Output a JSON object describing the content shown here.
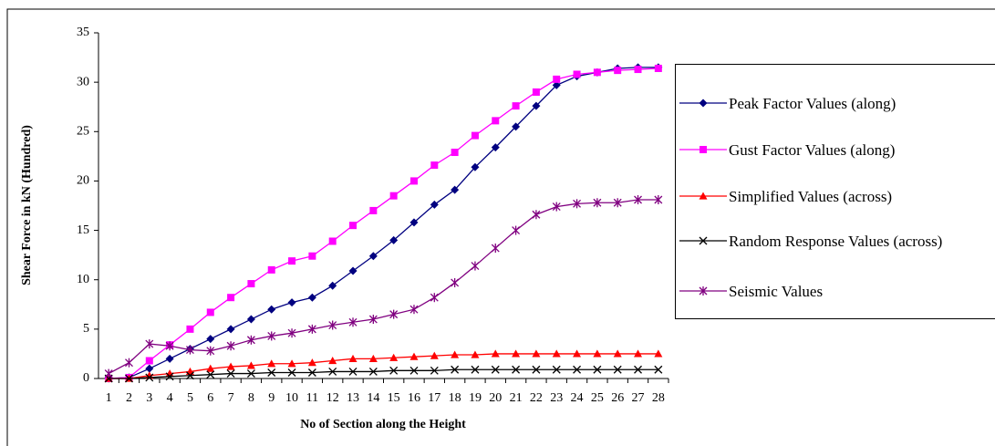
{
  "chart_data": {
    "type": "line",
    "x_label": "No of Section along the Height",
    "y_label": "Shear Force in kN (Hundred)",
    "categories": [
      1,
      2,
      3,
      4,
      5,
      6,
      7,
      8,
      9,
      10,
      11,
      12,
      13,
      14,
      15,
      16,
      17,
      18,
      19,
      20,
      21,
      22,
      23,
      24,
      25,
      26,
      27,
      28
    ],
    "ylim": [
      0,
      35
    ],
    "yticks": [
      0,
      5,
      10,
      15,
      20,
      25,
      30,
      35
    ],
    "grid": false,
    "legend": "right",
    "series": [
      {
        "name": "Peak Factor Values (along)",
        "color": "#000080",
        "marker": "diamond",
        "values": [
          0,
          0.1,
          1,
          2,
          3,
          4,
          5,
          6,
          7,
          7.7,
          8.2,
          9.4,
          10.9,
          12.4,
          14,
          15.8,
          17.6,
          19.1,
          21.4,
          23.4,
          25.5,
          27.6,
          29.7,
          30.6,
          31,
          31.4,
          31.5,
          31.5
        ]
      },
      {
        "name": "Gust Factor Values (along)",
        "color": "#ff00ff",
        "marker": "square",
        "values": [
          0,
          0.1,
          1.8,
          3.4,
          5,
          6.7,
          8.2,
          9.6,
          11,
          11.9,
          12.4,
          13.9,
          15.5,
          17,
          18.5,
          20,
          21.6,
          22.9,
          24.6,
          26.1,
          27.6,
          29,
          30.3,
          30.8,
          31,
          31.2,
          31.3,
          31.4
        ]
      },
      {
        "name": "Simplified Values (across)",
        "color": "#ff0000",
        "marker": "triangle",
        "values": [
          0,
          0,
          0.3,
          0.5,
          0.7,
          1,
          1.2,
          1.3,
          1.5,
          1.5,
          1.6,
          1.8,
          2,
          2,
          2.1,
          2.2,
          2.3,
          2.4,
          2.4,
          2.5,
          2.5,
          2.5,
          2.5,
          2.5,
          2.5,
          2.5,
          2.5,
          2.5
        ]
      },
      {
        "name": "Random Response Values (across)",
        "color": "#000000",
        "marker": "x",
        "values": [
          0,
          0,
          0.1,
          0.2,
          0.3,
          0.4,
          0.5,
          0.5,
          0.6,
          0.6,
          0.6,
          0.7,
          0.7,
          0.7,
          0.8,
          0.8,
          0.8,
          0.9,
          0.9,
          0.9,
          0.9,
          0.9,
          0.9,
          0.9,
          0.9,
          0.9,
          0.9,
          0.9
        ]
      },
      {
        "name": "Seismic Values",
        "color": "#800080",
        "marker": "star",
        "values": [
          0.5,
          1.6,
          3.5,
          3.3,
          2.9,
          2.8,
          3.3,
          3.9,
          4.3,
          4.6,
          5.0,
          5.4,
          5.7,
          6.0,
          6.5,
          7.0,
          8.2,
          9.7,
          11.4,
          13.2,
          15.0,
          16.6,
          17.4,
          17.7,
          17.8,
          17.8,
          18.1,
          18.1
        ]
      }
    ]
  }
}
